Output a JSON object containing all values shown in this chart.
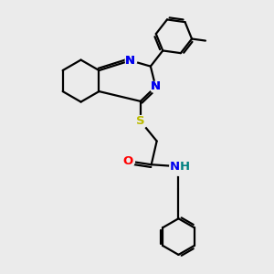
{
  "bg_color": "#ebebeb",
  "atom_colors": {
    "N": "#0000ee",
    "S": "#bbbb00",
    "O": "#ff0000",
    "H": "#008080",
    "C": "#000000"
  },
  "line_color": "#000000",
  "line_width": 1.6,
  "font_size": 9.5
}
